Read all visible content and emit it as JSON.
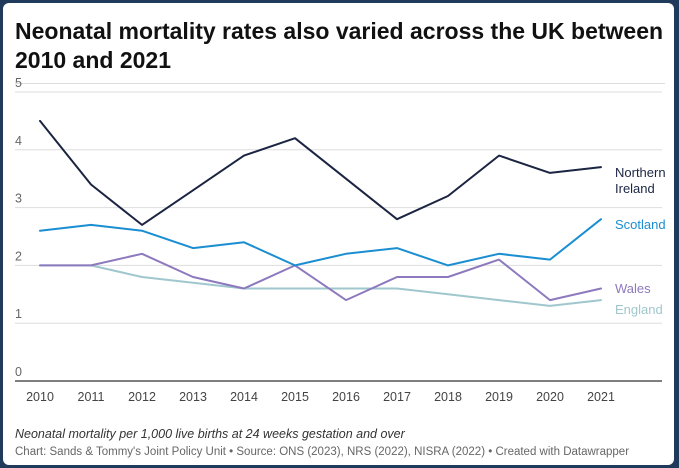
{
  "header": {
    "title": "Neonatal mortality rates also varied across the UK between 2010 and 2021"
  },
  "footer": {
    "note": "Neonatal mortality per 1,000 live births at 24 weeks gestation and over",
    "source": "Chart: Sands & Tommy's Joint Policy Unit • Source: ONS (2023), NRS (2022), NISRA (2022) • Created with Datawrapper"
  },
  "colors": {
    "northern_ireland": "#1b2542",
    "scotland": "#1a8ed1",
    "wales": "#8d79be",
    "england": "#9fc7cd",
    "grid": "#dddddd",
    "axis_text": "#666666"
  },
  "chart_data": {
    "type": "line",
    "title": "Neonatal mortality rates also varied across the UK between 2010 and 2021",
    "x": [
      "2010",
      "2011",
      "2012",
      "2013",
      "2014",
      "2015",
      "2016",
      "2017",
      "2018",
      "2019",
      "2020",
      "2021"
    ],
    "ylim": [
      0,
      5
    ],
    "yticks": [
      "0",
      "1",
      "2",
      "3",
      "4",
      "5"
    ],
    "grid": true,
    "legend": "direct labels at line ends",
    "series": [
      {
        "name": "Northern Ireland",
        "label_lines": [
          "Northern",
          "Ireland"
        ],
        "color": "#1b2542",
        "values": [
          4.5,
          3.4,
          2.7,
          3.3,
          3.9,
          4.2,
          3.5,
          2.8,
          3.2,
          3.9,
          3.6,
          3.7
        ]
      },
      {
        "name": "Scotland",
        "label_lines": [
          "Scotland"
        ],
        "color": "#1a8ed1",
        "values": [
          2.6,
          2.7,
          2.6,
          2.3,
          2.4,
          2.0,
          2.2,
          2.3,
          2.0,
          2.2,
          2.1,
          2.8
        ]
      },
      {
        "name": "Wales",
        "label_lines": [
          "Wales"
        ],
        "color": "#8d79be",
        "values": [
          2.0,
          2.0,
          2.2,
          1.8,
          1.6,
          2.0,
          1.4,
          1.8,
          1.8,
          2.1,
          1.4,
          1.6
        ]
      },
      {
        "name": "England",
        "label_lines": [
          "England"
        ],
        "color": "#9fc7cd",
        "values": [
          2.0,
          2.0,
          1.8,
          1.7,
          1.6,
          1.6,
          1.6,
          1.6,
          1.5,
          1.4,
          1.3,
          1.4
        ]
      }
    ]
  }
}
